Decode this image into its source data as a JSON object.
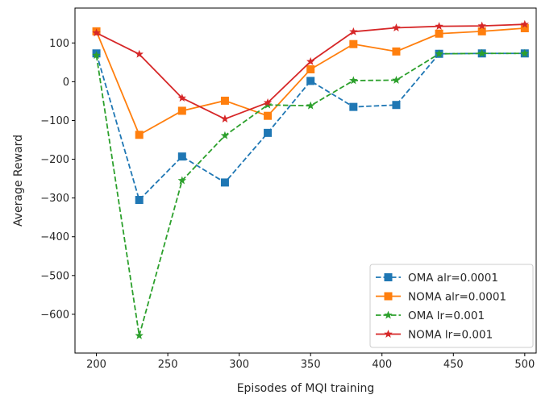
{
  "chart_data": {
    "type": "line",
    "title": "",
    "xlabel": "Episodes of MQI training",
    "ylabel": "Average Reward",
    "xlim": [
      185,
      508
    ],
    "ylim": [
      -700,
      190
    ],
    "x_ticks": [
      200,
      250,
      300,
      350,
      400,
      450,
      500
    ],
    "y_ticks": [
      100,
      0,
      -100,
      -200,
      -300,
      -400,
      -500,
      -600
    ],
    "y_tick_labels": [
      "100",
      "0",
      "−100",
      "−200",
      "−300",
      "−400",
      "−500",
      "−600"
    ],
    "grid": false,
    "legend_position": "lower-right",
    "x": [
      200,
      230,
      260,
      290,
      320,
      350,
      380,
      410,
      440,
      470,
      500
    ],
    "series": [
      {
        "name": "OMA alr=0.0001",
        "color": "#1f77b4",
        "line_style": "dashed",
        "marker": "square",
        "values": [
          73,
          -305,
          -193,
          -260,
          -132,
          2,
          -65,
          -60,
          72,
          73,
          73
        ]
      },
      {
        "name": "NOMA alr=0.0001",
        "color": "#ff7f0e",
        "line_style": "solid",
        "marker": "square",
        "values": [
          130,
          -137,
          -75,
          -49,
          -88,
          32,
          97,
          78,
          124,
          130,
          138
        ]
      },
      {
        "name": "OMA lr=0.001",
        "color": "#2ca02c",
        "line_style": "dashed",
        "marker": "star",
        "values": [
          68,
          -655,
          -255,
          -139,
          -60,
          -62,
          3,
          4,
          72,
          73,
          73
        ]
      },
      {
        "name": "NOMA lr=0.001",
        "color": "#d62728",
        "line_style": "solid",
        "marker": "star",
        "values": [
          126,
          71,
          -42,
          -96,
          -54,
          52,
          129,
          139,
          143,
          144,
          148
        ]
      }
    ]
  }
}
